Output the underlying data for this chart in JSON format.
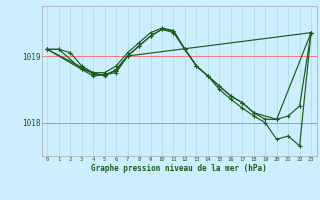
{
  "title": "Graphe pression niveau de la mer (hPa)",
  "background_color": "#cceeff",
  "grid_color_v": "#aadddd",
  "grid_color_h": "#ff6666",
  "line_color": "#1a5c1a",
  "ylim": [
    1017.5,
    1019.75
  ],
  "yticks": [
    1018.0,
    1019.0
  ],
  "ytick_labels": [
    "1018",
    "1019"
  ],
  "xticks": [
    0,
    1,
    2,
    3,
    4,
    5,
    6,
    7,
    8,
    9,
    10,
    11,
    12,
    13,
    14,
    15,
    16,
    17,
    18,
    19,
    20,
    21,
    22,
    23
  ],
  "series1": {
    "x": [
      0,
      1,
      2,
      3,
      4,
      5,
      6,
      7,
      8,
      9,
      10,
      11,
      12,
      13,
      14,
      15,
      16,
      17,
      18,
      19,
      20,
      21,
      22,
      23
    ],
    "y": [
      1019.1,
      1019.1,
      1019.05,
      1018.85,
      1018.75,
      1018.7,
      1018.8,
      1019.0,
      1019.15,
      1019.3,
      1019.4,
      1019.35,
      1019.1,
      1018.85,
      1018.7,
      1018.55,
      1018.4,
      1018.3,
      1018.15,
      1018.05,
      1018.05,
      1018.1,
      1018.25,
      1019.35
    ]
  },
  "series2": {
    "x": [
      0,
      1,
      3,
      4,
      5,
      6,
      7,
      8,
      9,
      10,
      11,
      12,
      13,
      14,
      15,
      16,
      17,
      18,
      20,
      23
    ],
    "y": [
      1019.1,
      1019.1,
      1018.8,
      1018.75,
      1018.75,
      1018.85,
      1019.05,
      1019.2,
      1019.35,
      1019.42,
      1019.38,
      1019.1,
      1018.85,
      1018.7,
      1018.55,
      1018.4,
      1018.3,
      1018.15,
      1018.05,
      1019.35
    ]
  },
  "series3": {
    "x": [
      0,
      3,
      4,
      5,
      6,
      7,
      8,
      9,
      10,
      11,
      12,
      13,
      14,
      15,
      16,
      17,
      18,
      19,
      20,
      21,
      22,
      23
    ],
    "y": [
      1019.1,
      1018.8,
      1018.7,
      1018.72,
      1018.75,
      1019.0,
      1019.15,
      1019.3,
      1019.4,
      1019.38,
      1019.1,
      1018.85,
      1018.7,
      1018.5,
      1018.35,
      1018.22,
      1018.1,
      1018.0,
      1017.75,
      1017.8,
      1017.65,
      1019.35
    ]
  },
  "series4": {
    "x": [
      0,
      3,
      4,
      5,
      6,
      7,
      23
    ],
    "y": [
      1019.1,
      1018.83,
      1018.73,
      1018.72,
      1018.78,
      1019.0,
      1019.35
    ]
  }
}
